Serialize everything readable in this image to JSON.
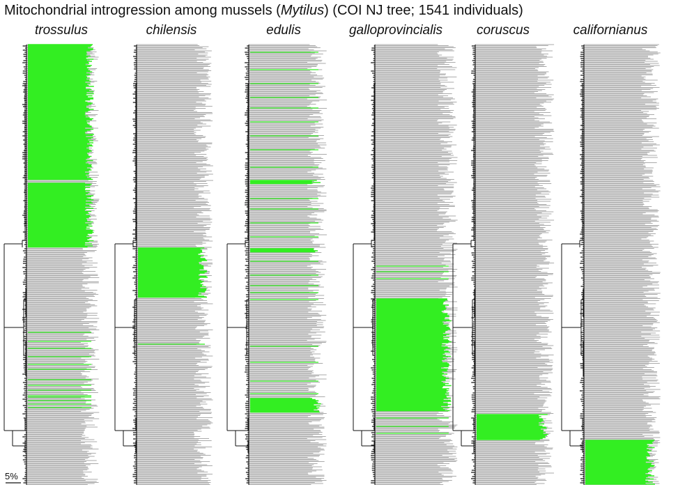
{
  "title": {
    "prefix": "Mitochondrial introgression among mussels (",
    "genus": "Mytilus",
    "suffix": ") (COI NJ tree; 1541 individuals)"
  },
  "panels": [
    {
      "species": "trossulus"
    },
    {
      "species": "chilensis"
    },
    {
      "species": "edulis"
    },
    {
      "species": "galloprovincialis"
    },
    {
      "species": "coruscus"
    },
    {
      "species": "californianus"
    }
  ],
  "scale_bar": {
    "label": "5%"
  },
  "colors": {
    "highlight": "#33ee22",
    "tips": "#aaaaaa",
    "tree": "#111111"
  }
}
